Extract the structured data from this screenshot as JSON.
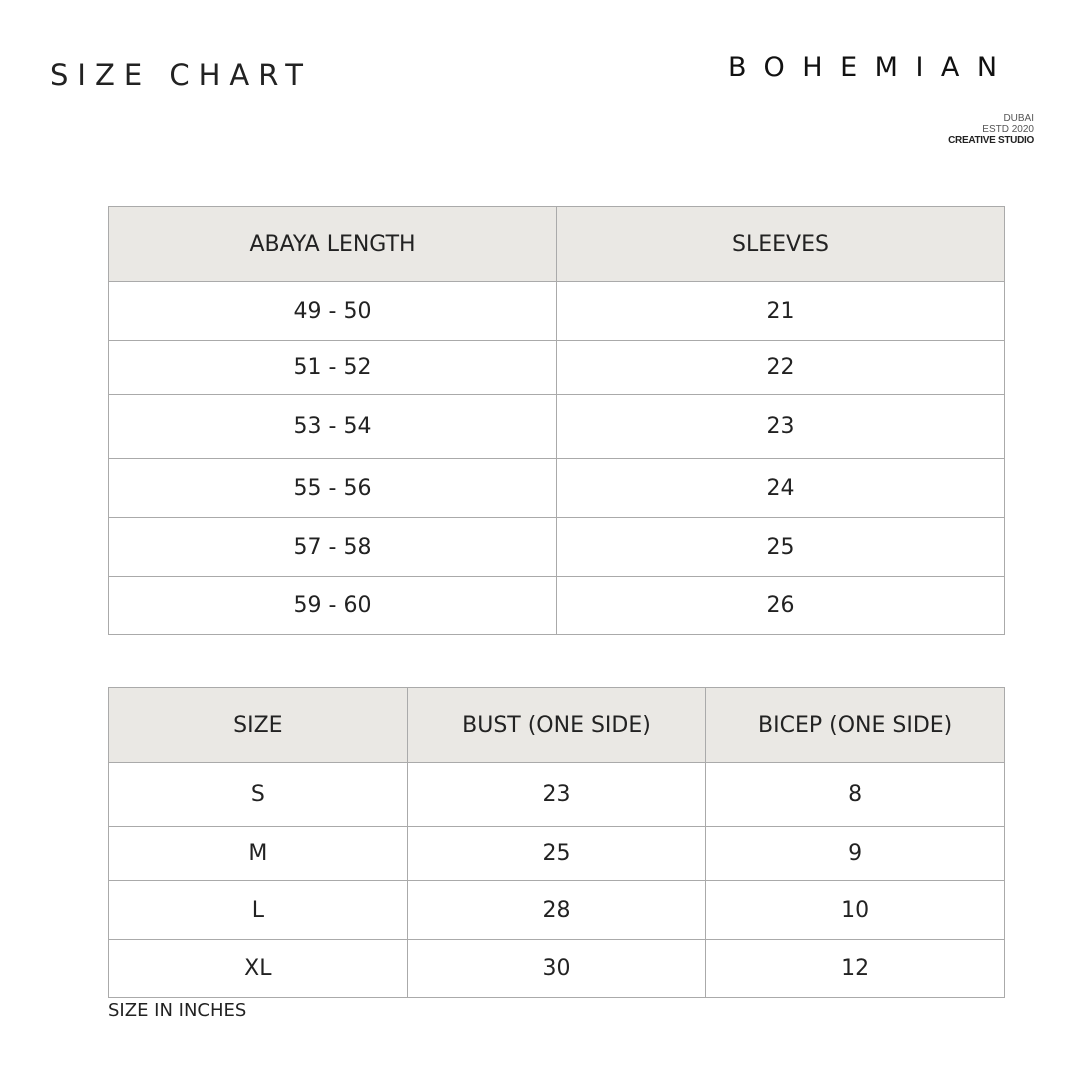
{
  "header": {
    "title": "SIZE CHART",
    "brand": "BOHEMIAN",
    "brand_lines": [
      "DUBAI",
      "ESTD 2020",
      "CREATIVE STUDIO"
    ]
  },
  "length_table": {
    "columns": [
      "ABAYA LENGTH",
      "SLEEVES"
    ],
    "rows": [
      [
        "49 - 50",
        "21"
      ],
      [
        "51 - 52",
        "22"
      ],
      [
        "53 - 54",
        "23"
      ],
      [
        "55 - 56",
        "24"
      ],
      [
        "57 - 58",
        "25"
      ],
      [
        "59 - 60",
        "26"
      ]
    ]
  },
  "size_table": {
    "columns": [
      "SIZE",
      "BUST (ONE SIDE)",
      "BICEP (ONE SIDE)"
    ],
    "rows": [
      [
        "S",
        "23",
        "8"
      ],
      [
        "M",
        "25",
        "9"
      ],
      [
        "L",
        "28",
        "10"
      ],
      [
        "XL",
        "30",
        "12"
      ]
    ]
  },
  "footer": {
    "note": "SIZE IN INCHES"
  },
  "colors": {
    "header_bg": "#eae8e4",
    "border": "#aaaaaa"
  }
}
